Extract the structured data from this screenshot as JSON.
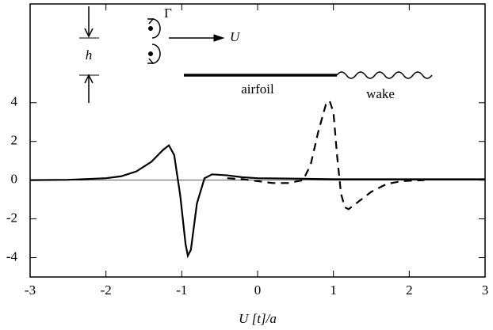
{
  "chart_data": {
    "type": "line",
    "x_label": "U [t]/a",
    "annotations": [
      "Γ",
      "U",
      "h",
      "airfoil",
      "wake"
    ],
    "xlim": [
      -3,
      3
    ],
    "xticks": [
      -3,
      -2,
      -1,
      0,
      1,
      2,
      3
    ],
    "ylim": [
      -5,
      9.1
    ],
    "yticks": [
      -4,
      -2,
      0,
      2,
      4
    ],
    "series": [
      {
        "color": "#000000",
        "style": "solid",
        "x": [
          -3,
          -2.5,
          -2,
          -1.8,
          -1.6,
          -1.4,
          -1.25,
          -1.17,
          -1.1,
          -1.02,
          -0.95,
          -0.92,
          -0.88,
          -0.8,
          -0.7,
          -0.6,
          -0.4,
          -0.2,
          0,
          0.5,
          1,
          1.5,
          2,
          3
        ],
        "values": [
          0,
          0.02,
          0.1,
          0.2,
          0.45,
          0.95,
          1.55,
          1.8,
          1.3,
          -0.8,
          -3.3,
          -3.9,
          -3.6,
          -1.2,
          0.1,
          0.3,
          0.25,
          0.15,
          0.1,
          0.08,
          0.05,
          0.05,
          0.05,
          0.05
        ]
      },
      {
        "color": "#000000",
        "style": "dashed",
        "x": [
          -0.4,
          -0.2,
          0,
          0.2,
          0.4,
          0.6,
          0.7,
          0.8,
          0.9,
          0.95,
          1.0,
          1.05,
          1.1,
          1.15,
          1.2,
          1.3,
          1.5,
          1.7,
          1.9,
          2.2
        ],
        "values": [
          0.1,
          0.05,
          -0.05,
          -0.15,
          -0.15,
          0,
          0.8,
          2.5,
          3.9,
          4.1,
          3.5,
          1.2,
          -0.7,
          -1.4,
          -1.5,
          -1.2,
          -0.6,
          -0.2,
          -0.05,
          0
        ]
      }
    ]
  }
}
